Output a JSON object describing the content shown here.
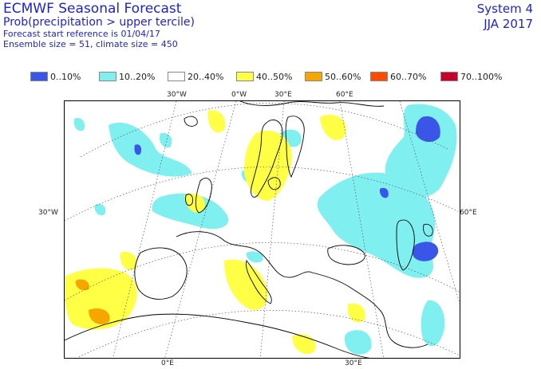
{
  "header": {
    "title": "ECMWF Seasonal Forecast",
    "subtitle": "Prob(precipitation > upper tercile)",
    "start_reference": "Forecast start reference is 01/04/17",
    "ensemble": "Ensemble size = 51, climate size = 450",
    "system": "System 4",
    "season": "JJA 2017"
  },
  "legend": {
    "items": [
      {
        "label": "0..10%",
        "color": "#3a56e8"
      },
      {
        "label": "10..20%",
        "color": "#7fefef"
      },
      {
        "label": "20..40%",
        "color": "#ffffff"
      },
      {
        "label": "40..50%",
        "color": "#ffff46"
      },
      {
        "label": "50..60%",
        "color": "#f7a600"
      },
      {
        "label": "60..70%",
        "color": "#ff4a00"
      },
      {
        "label": "70..100%",
        "color": "#c8002a"
      }
    ]
  },
  "map": {
    "lon_labels_top": [
      "30°W",
      "0°W",
      "30°E",
      "60°E"
    ],
    "lon_labels_bottom": [
      "0°E",
      "30°E"
    ],
    "lat_labels": [
      "30°W",
      "60°E"
    ]
  }
}
